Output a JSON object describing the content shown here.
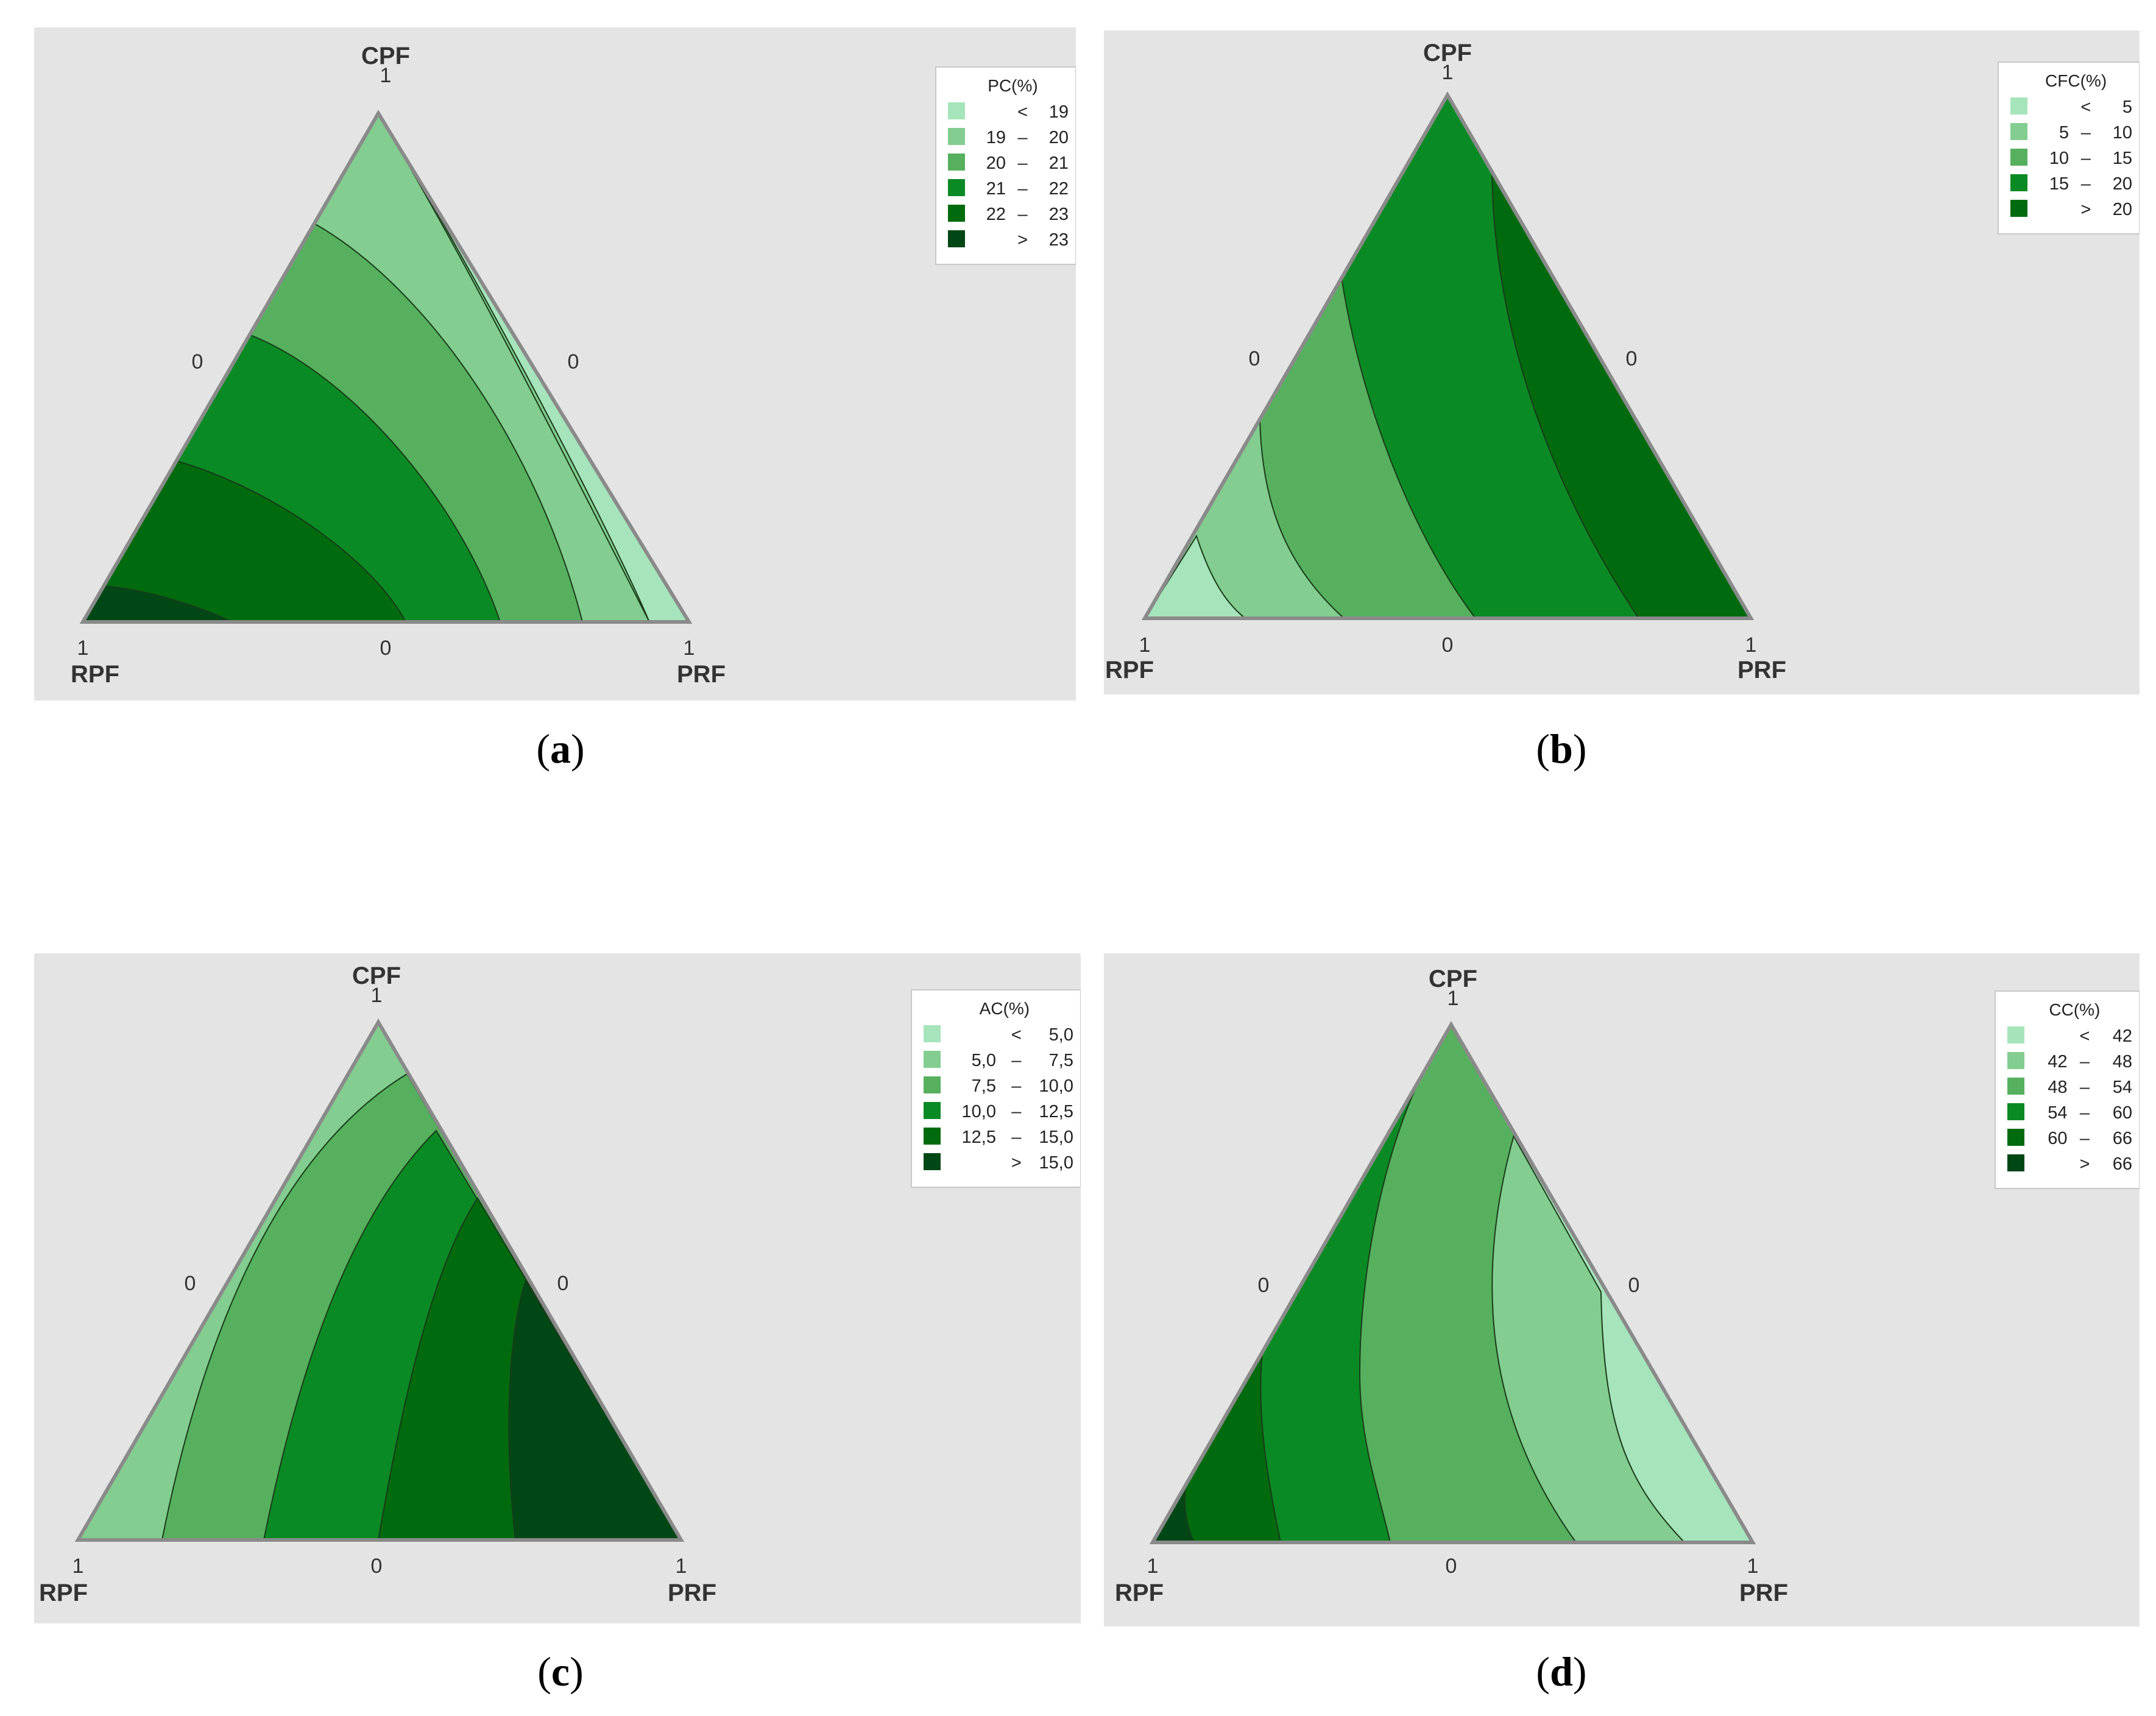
{
  "colors": {
    "c1": "#a6e4bb",
    "c2": "#82cd8f",
    "c3": "#56b05e",
    "c4": "#0a8a24",
    "c5": "#006a0e",
    "c6": "#004716",
    "panel_bg": "#e4e4e4",
    "outline": "#8a8a8a"
  },
  "chart_data": [
    {
      "type": "ternary-contour",
      "panel": "a",
      "caption_open": "(",
      "caption_letter": "a",
      "caption_close": ")",
      "vertices": {
        "top": "CPF",
        "left": "RPF",
        "right": "PRF"
      },
      "axis_ticks": {
        "top": "1",
        "left_bottom": "1",
        "right_bottom": "1",
        "left_mid": "0",
        "right_mid": "0",
        "bottom_mid": "0"
      },
      "legend": {
        "title": "PC(%)",
        "entries": [
          {
            "lo": "",
            "op": "<",
            "hi": "19",
            "color": "c1"
          },
          {
            "lo": "19",
            "op": "–",
            "hi": "20",
            "color": "c2"
          },
          {
            "lo": "20",
            "op": "–",
            "hi": "21",
            "color": "c3"
          },
          {
            "lo": "21",
            "op": "–",
            "hi": "22",
            "color": "c4"
          },
          {
            "lo": "22",
            "op": "–",
            "hi": "23",
            "color": "c5"
          },
          {
            "lo": "",
            "op": ">",
            "hi": "23",
            "color": "c6"
          }
        ]
      }
    },
    {
      "type": "ternary-contour",
      "panel": "b",
      "caption_open": "(",
      "caption_letter": "b",
      "caption_close": ")",
      "vertices": {
        "top": "CPF",
        "left": "RPF",
        "right": "PRF"
      },
      "axis_ticks": {
        "top": "1",
        "left_bottom": "1",
        "right_bottom": "1",
        "left_mid": "0",
        "right_mid": "0",
        "bottom_mid": "0"
      },
      "legend": {
        "title": "CFC(%)",
        "entries": [
          {
            "lo": "",
            "op": "<",
            "hi": "5",
            "color": "c1"
          },
          {
            "lo": "5",
            "op": "–",
            "hi": "10",
            "color": "c2"
          },
          {
            "lo": "10",
            "op": "–",
            "hi": "15",
            "color": "c3"
          },
          {
            "lo": "15",
            "op": "–",
            "hi": "20",
            "color": "c4"
          },
          {
            "lo": "",
            "op": ">",
            "hi": "20",
            "color": "c5"
          }
        ]
      }
    },
    {
      "type": "ternary-contour",
      "panel": "c",
      "caption_open": "(",
      "caption_letter": "c",
      "caption_close": ")",
      "vertices": {
        "top": "CPF",
        "left": "RPF",
        "right": "PRF"
      },
      "axis_ticks": {
        "top": "1",
        "left_bottom": "1",
        "right_bottom": "1",
        "left_mid": "0",
        "right_mid": "0",
        "bottom_mid": "0"
      },
      "legend": {
        "title": "AC(%)",
        "entries": [
          {
            "lo": "",
            "op": "<",
            "hi": "5,0",
            "color": "c1"
          },
          {
            "lo": "5,0",
            "op": "–",
            "hi": "7,5",
            "color": "c2"
          },
          {
            "lo": "7,5",
            "op": "–",
            "hi": "10,0",
            "color": "c3"
          },
          {
            "lo": "10,0",
            "op": "–",
            "hi": "12,5",
            "color": "c4"
          },
          {
            "lo": "12,5",
            "op": "–",
            "hi": "15,0",
            "color": "c5"
          },
          {
            "lo": "",
            "op": ">",
            "hi": "15,0",
            "color": "c6"
          }
        ]
      }
    },
    {
      "type": "ternary-contour",
      "panel": "d",
      "caption_open": "(",
      "caption_letter": "d",
      "caption_close": ")",
      "vertices": {
        "top": "CPF",
        "left": "RPF",
        "right": "PRF"
      },
      "axis_ticks": {
        "top": "1",
        "left_bottom": "1",
        "right_bottom": "1",
        "left_mid": "0",
        "right_mid": "0",
        "bottom_mid": "0"
      },
      "legend": {
        "title": "CC(%)",
        "entries": [
          {
            "lo": "",
            "op": "<",
            "hi": "42",
            "color": "c1"
          },
          {
            "lo": "42",
            "op": "–",
            "hi": "48",
            "color": "c2"
          },
          {
            "lo": "48",
            "op": "–",
            "hi": "54",
            "color": "c3"
          },
          {
            "lo": "54",
            "op": "–",
            "hi": "60",
            "color": "c4"
          },
          {
            "lo": "60",
            "op": "–",
            "hi": "66",
            "color": "c5"
          },
          {
            "lo": "",
            "op": ">",
            "hi": "66",
            "color": "c6"
          }
        ]
      }
    }
  ]
}
